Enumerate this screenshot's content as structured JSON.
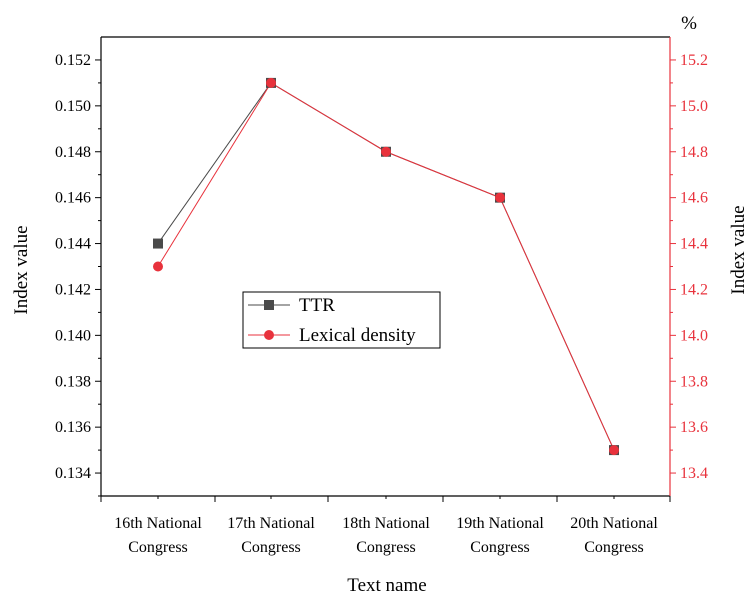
{
  "chart_data": {
    "type": "line",
    "categories": [
      [
        "16th National",
        "Congress"
      ],
      [
        "17th National",
        "Congress"
      ],
      [
        "18th National",
        "Congress"
      ],
      [
        "19th National",
        "Congress"
      ],
      [
        "20th National",
        "Congress"
      ]
    ],
    "xlabel": "Text name",
    "ylabel_left": "Index value",
    "ylabel_right": "Index value",
    "right_unit": "%",
    "ylim_left": [
      0.133,
      0.153
    ],
    "ylim_right": [
      13.3,
      15.3
    ],
    "yticks_left": [
      "0.134",
      "0.136",
      "0.138",
      "0.140",
      "0.142",
      "0.144",
      "0.146",
      "0.148",
      "0.150",
      "0.152"
    ],
    "yticks_right": [
      "13.4",
      "13.6",
      "13.8",
      "14.0",
      "14.2",
      "14.4",
      "14.6",
      "14.8",
      "15.0",
      "15.2"
    ],
    "grid": false,
    "legend_position": "center-left",
    "series": [
      {
        "name": "TTR",
        "axis": "left",
        "marker": "square",
        "color": "#4a4a4a",
        "values": [
          0.144,
          0.151,
          0.148,
          0.146,
          0.135
        ]
      },
      {
        "name": "Lexical density",
        "axis": "right",
        "marker": "circle",
        "color": "#e8323c",
        "values": [
          14.3,
          15.1,
          14.8,
          14.6,
          13.5
        ]
      }
    ],
    "colors": {
      "axis_left": "#000000",
      "axis_right": "#e8323c"
    }
  }
}
